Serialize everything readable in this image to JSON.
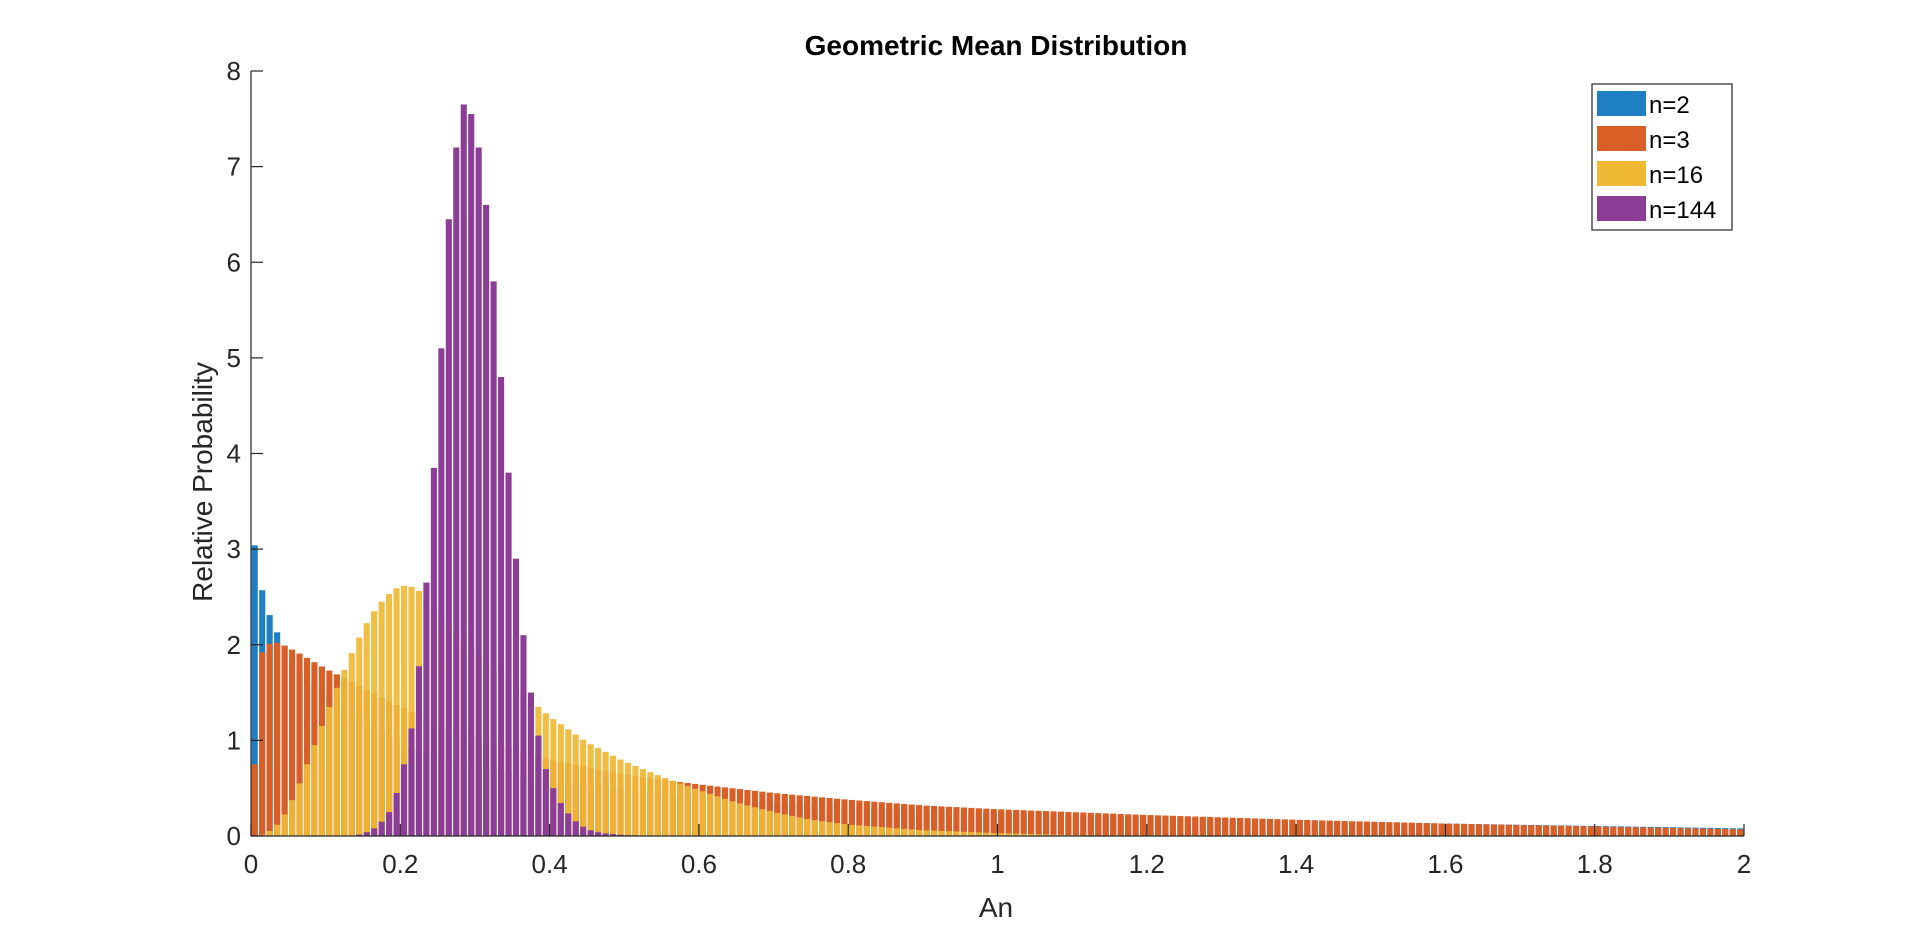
{
  "chart_data": {
    "type": "bar",
    "title": "Geometric Mean Distribution",
    "xlabel": "An",
    "ylabel": "Relative Probability",
    "xlim": [
      0,
      2
    ],
    "ylim": [
      0,
      8
    ],
    "xticks": [
      "0",
      "0.2",
      "0.4",
      "0.6",
      "0.8",
      "1",
      "1.2",
      "1.4",
      "1.6",
      "1.8",
      "2"
    ],
    "yticks": [
      "0",
      "1",
      "2",
      "3",
      "4",
      "5",
      "6",
      "7",
      "8"
    ],
    "grid": false,
    "legend_position": "top-right",
    "bin_width": 0.01,
    "bin_x_start": 0.005,
    "bin_x_end": 1.995,
    "series": [
      {
        "name": "n=2",
        "color": "#1f7fc4",
        "points": [
          [
            0.005,
            3.04
          ],
          [
            0.015,
            2.57
          ],
          [
            0.025,
            2.31
          ],
          [
            0.035,
            2.13
          ],
          [
            0.045,
            1.99
          ],
          [
            0.06,
            1.85
          ],
          [
            0.08,
            1.65
          ],
          [
            0.1,
            1.49
          ],
          [
            0.15,
            1.19
          ],
          [
            0.2,
            0.98
          ],
          [
            0.3,
            0.72
          ],
          [
            0.4,
            0.58
          ],
          [
            0.5,
            0.48
          ],
          [
            0.6,
            0.4
          ],
          [
            0.7,
            0.35
          ],
          [
            0.8,
            0.31
          ],
          [
            0.9,
            0.27
          ],
          [
            1.0,
            0.245
          ],
          [
            1.2,
            0.2
          ],
          [
            1.4,
            0.16
          ],
          [
            1.6,
            0.13
          ],
          [
            1.8,
            0.105
          ],
          [
            1.995,
            0.08
          ]
        ]
      },
      {
        "name": "n=3",
        "color": "#d95f26",
        "points": [
          [
            0.005,
            0.75
          ],
          [
            0.015,
            1.92
          ],
          [
            0.025,
            2.01
          ],
          [
            0.035,
            2.02
          ],
          [
            0.045,
            1.99
          ],
          [
            0.06,
            1.93
          ],
          [
            0.08,
            1.84
          ],
          [
            0.1,
            1.75
          ],
          [
            0.12,
            1.67
          ],
          [
            0.15,
            1.55
          ],
          [
            0.2,
            1.35
          ],
          [
            0.25,
            1.18
          ],
          [
            0.3,
            1.03
          ],
          [
            0.4,
            0.8
          ],
          [
            0.5,
            0.64
          ],
          [
            0.6,
            0.54
          ],
          [
            0.7,
            0.45
          ],
          [
            0.8,
            0.38
          ],
          [
            0.9,
            0.32
          ],
          [
            1.0,
            0.28
          ],
          [
            1.2,
            0.22
          ],
          [
            1.4,
            0.17
          ],
          [
            1.6,
            0.13
          ],
          [
            1.8,
            0.1
          ],
          [
            1.995,
            0.07
          ]
        ]
      },
      {
        "name": "n=16",
        "color": "#f0b935",
        "points": [
          [
            0.005,
            0.0
          ],
          [
            0.02,
            0.02
          ],
          [
            0.04,
            0.15
          ],
          [
            0.06,
            0.45
          ],
          [
            0.08,
            0.85
          ],
          [
            0.1,
            1.25
          ],
          [
            0.12,
            1.65
          ],
          [
            0.14,
            2.0
          ],
          [
            0.16,
            2.3
          ],
          [
            0.18,
            2.5
          ],
          [
            0.2,
            2.62
          ],
          [
            0.22,
            2.6
          ],
          [
            0.24,
            2.45
          ],
          [
            0.26,
            2.25
          ],
          [
            0.3,
            1.9
          ],
          [
            0.35,
            1.58
          ],
          [
            0.4,
            1.25
          ],
          [
            0.45,
            0.98
          ],
          [
            0.5,
            0.78
          ],
          [
            0.55,
            0.62
          ],
          [
            0.6,
            0.48
          ],
          [
            0.65,
            0.35
          ],
          [
            0.7,
            0.25
          ],
          [
            0.75,
            0.17
          ],
          [
            0.8,
            0.12
          ],
          [
            0.9,
            0.06
          ],
          [
            1.0,
            0.03
          ],
          [
            1.1,
            0.01
          ],
          [
            1.2,
            0.0
          ],
          [
            1.995,
            0.0
          ]
        ]
      },
      {
        "name": "n=144",
        "color": "#8c3e96",
        "points": [
          [
            0.005,
            0.0
          ],
          [
            0.13,
            0.0
          ],
          [
            0.15,
            0.02
          ],
          [
            0.17,
            0.1
          ],
          [
            0.19,
            0.3
          ],
          [
            0.21,
            0.9
          ],
          [
            0.22,
            1.35
          ],
          [
            0.23,
            2.2
          ],
          [
            0.24,
            3.1
          ],
          [
            0.245,
            3.85
          ],
          [
            0.255,
            5.1
          ],
          [
            0.265,
            6.45
          ],
          [
            0.275,
            7.2
          ],
          [
            0.285,
            7.65
          ],
          [
            0.295,
            7.55
          ],
          [
            0.305,
            7.2
          ],
          [
            0.315,
            6.6
          ],
          [
            0.325,
            5.8
          ],
          [
            0.335,
            4.8
          ],
          [
            0.345,
            3.8
          ],
          [
            0.355,
            2.9
          ],
          [
            0.365,
            2.1
          ],
          [
            0.375,
            1.5
          ],
          [
            0.385,
            1.05
          ],
          [
            0.395,
            0.7
          ],
          [
            0.41,
            0.4
          ],
          [
            0.43,
            0.18
          ],
          [
            0.45,
            0.07
          ],
          [
            0.47,
            0.03
          ],
          [
            0.5,
            0.01
          ],
          [
            0.55,
            0.0
          ],
          [
            1.995,
            0.0
          ]
        ]
      }
    ]
  }
}
